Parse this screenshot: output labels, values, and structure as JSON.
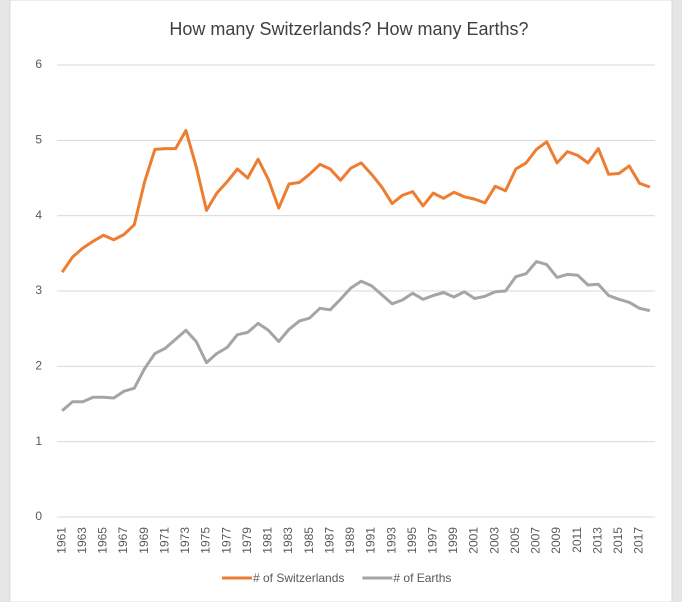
{
  "chart_data": {
    "type": "line",
    "title": "How many Switzerlands? How many Earths?",
    "categories": [
      1961,
      null,
      1963,
      null,
      1965,
      null,
      1967,
      null,
      1969,
      null,
      1971,
      null,
      1973,
      null,
      1975,
      null,
      1977,
      null,
      1979,
      null,
      1981,
      null,
      1983,
      null,
      1985,
      null,
      1987,
      null,
      1989,
      null,
      1991,
      null,
      1993,
      null,
      1995,
      null,
      1997,
      null,
      1999,
      null,
      2001,
      null,
      2003,
      null,
      2005,
      null,
      2007,
      null,
      2009,
      null,
      2011,
      null,
      2013,
      null,
      2015,
      null,
      2017,
      null
    ],
    "series": [
      {
        "name": "# of Switzerlands",
        "color": "#ed7d31",
        "values": [
          3.25,
          3.45,
          3.57,
          3.66,
          3.74,
          3.68,
          3.75,
          3.88,
          4.45,
          4.88,
          4.89,
          4.89,
          5.13,
          4.65,
          4.07,
          4.3,
          4.45,
          4.62,
          4.5,
          4.75,
          4.48,
          4.1,
          4.42,
          4.44,
          4.55,
          4.68,
          4.62,
          4.47,
          4.63,
          4.7,
          4.55,
          4.38,
          4.16,
          4.27,
          4.32,
          4.13,
          4.3,
          4.23,
          4.31,
          4.25,
          4.22,
          4.17,
          4.39,
          4.33,
          4.62,
          4.7,
          4.88,
          4.98,
          4.7,
          4.85,
          4.8,
          4.7,
          4.89,
          4.55,
          4.56,
          4.66,
          4.43,
          4.38
        ]
      },
      {
        "name": "# of Earths",
        "color": "#a5a5a5",
        "values": [
          1.41,
          1.53,
          1.53,
          1.59,
          1.59,
          1.58,
          1.67,
          1.71,
          1.97,
          2.17,
          2.24,
          2.36,
          2.48,
          2.33,
          2.05,
          2.17,
          2.25,
          2.42,
          2.45,
          2.57,
          2.48,
          2.33,
          2.49,
          2.6,
          2.64,
          2.77,
          2.75,
          2.89,
          3.04,
          3.13,
          3.07,
          2.95,
          2.83,
          2.88,
          2.97,
          2.89,
          2.94,
          2.98,
          2.92,
          2.99,
          2.9,
          2.93,
          2.99,
          3.0,
          3.19,
          3.23,
          3.39,
          3.35,
          3.18,
          3.22,
          3.21,
          3.08,
          3.09,
          2.94,
          2.89,
          2.85,
          2.77,
          2.74
        ]
      }
    ],
    "ylim": [
      0,
      6
    ],
    "yticks": [
      0,
      1,
      2,
      3,
      4,
      5,
      6
    ],
    "grid": true,
    "legend": "bottom"
  }
}
